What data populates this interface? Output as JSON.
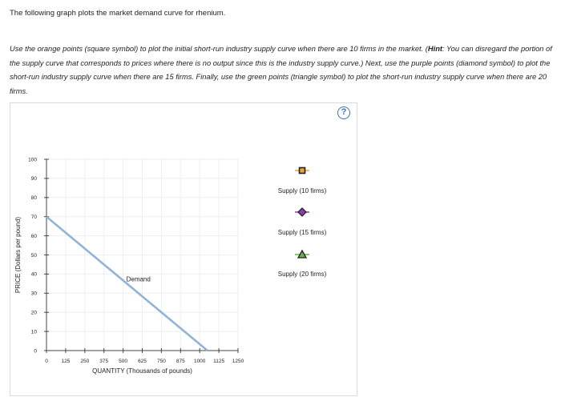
{
  "intro": "The following graph plots the market demand curve for rhenium.",
  "instructions": {
    "part1": "Use the orange points (square symbol) to plot the initial short-run industry supply curve when there are 10 firms in the market. (",
    "hint_label": "Hint",
    "part2": ": You can disregard the portion of the supply curve that corresponds to prices where there is no output since this is the industry supply curve.) Next, use the purple points (diamond symbol) to plot the short-run industry supply curve when there are 15 firms. Finally, use the green points (triangle symbol) to plot the short-run industry supply curve when there are 20 firms."
  },
  "help_symbol": "?",
  "colors": {
    "demand": "#8fb3d9",
    "grid": "#eeeeee",
    "orange": "#f0a23a",
    "purple": "#8b3fa8",
    "green": "#6ab04c",
    "help": "#3d6fb6"
  },
  "legend": [
    {
      "label": "Supply (10 firms)",
      "icon": "square-marker-icon",
      "color": "#f0a23a"
    },
    {
      "label": "Supply (15 firms)",
      "icon": "diamond-marker-icon",
      "color": "#8b3fa8"
    },
    {
      "label": "Supply (20 firms)",
      "icon": "triangle-marker-icon",
      "color": "#6ab04c"
    }
  ],
  "chart_data": {
    "type": "line",
    "xlabel": "QUANTITY (Thousands of pounds)",
    "ylabel": "PRICE (Dollars per pound)",
    "xlim": [
      0,
      1250
    ],
    "ylim": [
      0,
      100
    ],
    "xticks": [
      0,
      125,
      250,
      375,
      500,
      625,
      750,
      875,
      1000,
      1125,
      1250
    ],
    "yticks": [
      0,
      10,
      20,
      30,
      40,
      50,
      60,
      70,
      80,
      90,
      100
    ],
    "grid": true,
    "series": [
      {
        "name": "Demand",
        "x": [
          0,
          1050
        ],
        "y": [
          70,
          0
        ]
      }
    ],
    "annotations": [
      {
        "text": "Demand",
        "x": 500,
        "y": 35
      }
    ]
  }
}
